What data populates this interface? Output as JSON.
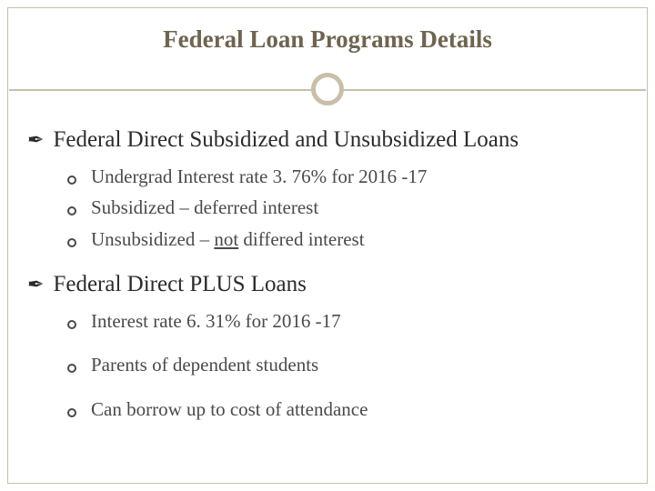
{
  "title": "Federal Loan Programs Details",
  "colors": {
    "border": "#c9bfa8",
    "title_text": "#6e6450",
    "body_text": "#4a4a4a",
    "heading_text": "#2b2b2b",
    "background": "#ffffff"
  },
  "typography": {
    "title_fontsize": 27,
    "heading_fontsize": 25,
    "body_fontsize": 21,
    "font_family": "Georgia"
  },
  "sections": [
    {
      "heading": "Federal Direct Subsidized and Unsubsidized Loans",
      "items": [
        {
          "pre": " Undergrad Interest rate 3. 76% for 2016 -17"
        },
        {
          "pre": "Subsidized – deferred interest"
        },
        {
          "pre": "Unsubsidized – ",
          "underline": "not",
          "post": " differed interest"
        }
      ],
      "spaced": false
    },
    {
      "heading": "Federal  Direct PLUS Loans",
      "items": [
        {
          "pre": "Interest rate 6. 31% for 2016 -17"
        },
        {
          "pre": "Parents of dependent students"
        },
        {
          "pre": "Can borrow up to cost of attendance"
        }
      ],
      "spaced": true
    }
  ]
}
